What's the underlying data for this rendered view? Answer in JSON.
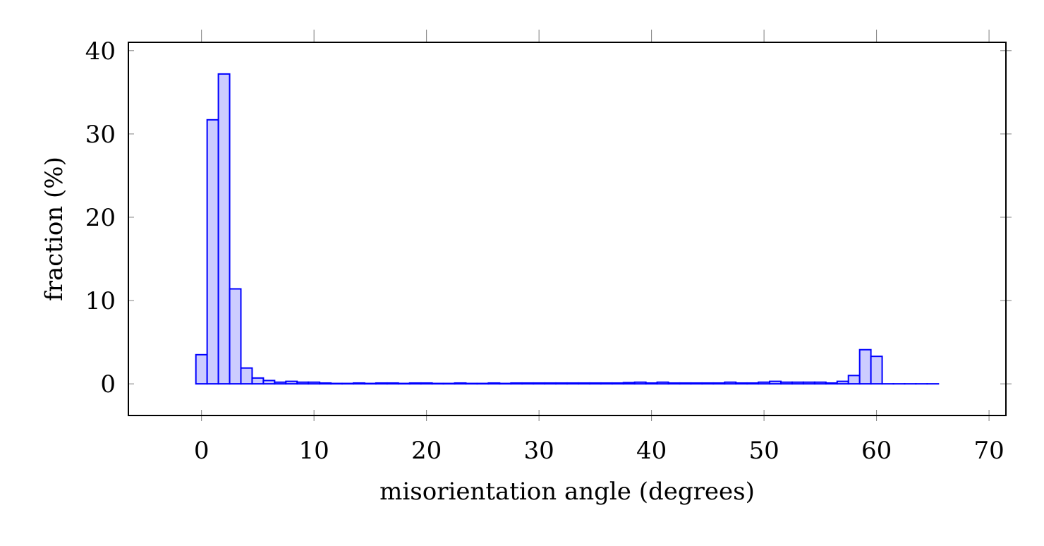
{
  "chart_data": {
    "type": "bar",
    "title": "",
    "xlabel": "misorientation angle (degrees)",
    "ylabel": "fraction (%)",
    "xlim": [
      -6.5,
      71.5
    ],
    "ylim": [
      -3.8,
      41
    ],
    "xticks": [
      0,
      10,
      20,
      30,
      40,
      50,
      60,
      70
    ],
    "yticks": [
      0,
      10,
      20,
      30,
      40
    ],
    "grid": false,
    "bar_width": 1,
    "bar_fill": "#ccccff",
    "bar_stroke": "#0000ff",
    "x": [
      0,
      1,
      2,
      3,
      4,
      5,
      6,
      7,
      8,
      9,
      10,
      11,
      12,
      13,
      14,
      15,
      16,
      17,
      18,
      19,
      20,
      21,
      22,
      23,
      24,
      25,
      26,
      27,
      28,
      29,
      30,
      31,
      32,
      33,
      34,
      35,
      36,
      37,
      38,
      39,
      40,
      41,
      42,
      43,
      44,
      45,
      46,
      47,
      48,
      49,
      50,
      51,
      52,
      53,
      54,
      55,
      56,
      57,
      58,
      59,
      60,
      61,
      62,
      63,
      64,
      65
    ],
    "values": [
      3.5,
      31.7,
      37.2,
      11.4,
      1.9,
      0.7,
      0.4,
      0.2,
      0.3,
      0.2,
      0.2,
      0.1,
      0.05,
      0.05,
      0.1,
      0.05,
      0.1,
      0.1,
      0.05,
      0.1,
      0.1,
      0.05,
      0.05,
      0.1,
      0.05,
      0.05,
      0.1,
      0.05,
      0.1,
      0.1,
      0.1,
      0.1,
      0.1,
      0.1,
      0.1,
      0.1,
      0.1,
      0.1,
      0.15,
      0.2,
      0.1,
      0.2,
      0.1,
      0.1,
      0.1,
      0.1,
      0.1,
      0.2,
      0.1,
      0.1,
      0.2,
      0.3,
      0.2,
      0.2,
      0.2,
      0.2,
      0.1,
      0.3,
      1.0,
      4.1,
      3.3,
      0,
      0,
      0,
      0,
      0
    ]
  }
}
